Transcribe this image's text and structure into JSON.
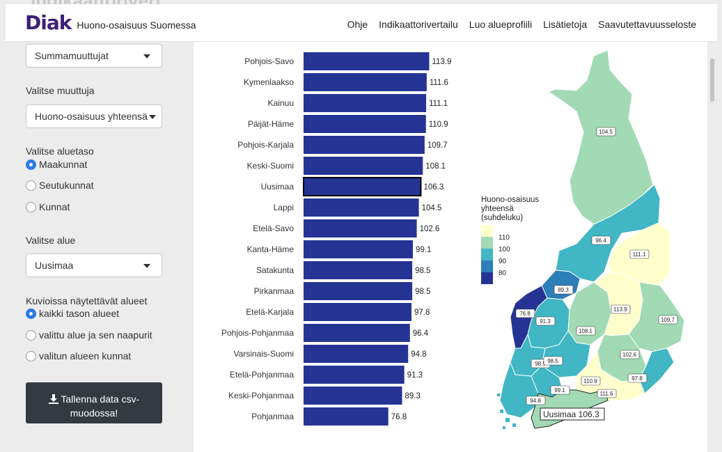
{
  "ghost": {
    "title": "Indikaattorivert",
    "sub": "muuttujaluokka"
  },
  "navbar": {
    "logo": "Diak",
    "brand": "Huono-osaisuus Suomessa",
    "links": [
      "Ohje",
      "Indikaattorivertailu",
      "Luo alueprofiili",
      "Lisätietoja",
      "Saavutettavuusseloste"
    ]
  },
  "sidebar": {
    "category_select": "Summamuuttujat",
    "variable_label": "Valitse muuttuja",
    "variable_select": "Huono-osaisuus yhteensä",
    "level_label": "Valitse aluetaso",
    "levels": [
      "Maakunnat",
      "Seutukunnat",
      "Kunnat"
    ],
    "region_label": "Valitse alue",
    "region_select": "Uusimaa",
    "show_label": "Kuvioissa näytettävät alueet",
    "show_options": [
      "kaikki tason alueet",
      "valittu alue ja sen naapurit",
      "valitun alueen kunnat"
    ],
    "download_line1": "Tallenna data csv-",
    "download_line2": "muodossa!"
  },
  "chart_data": [
    {
      "type": "bar",
      "orientation": "horizontal",
      "categories": [
        "Pohjois-Savo",
        "Kymenlaakso",
        "Kainuu",
        "Päijät-Häme",
        "Pohjois-Karjala",
        "Keski-Suomi",
        "Uusimaa",
        "Lappi",
        "Etelä-Savo",
        "Kanta-Häme",
        "Satakunta",
        "Pirkanmaa",
        "Etelä-Karjala",
        "Pohjois-Pohjanmaa",
        "Varsinais-Suomi",
        "Etelä-Pohjanmaa",
        "Keski-Pohjanmaa",
        "Pohjanmaa"
      ],
      "values": [
        113.9,
        111.6,
        111.1,
        110.9,
        109.7,
        108.1,
        106.3,
        104.5,
        102.6,
        99.1,
        98.5,
        98.5,
        97.8,
        96.4,
        94.8,
        91.3,
        89.3,
        76.8
      ],
      "value_labels": [
        "113.9",
        "111.6",
        "111.1",
        "110.9",
        "109.7",
        "108.1",
        "106.3",
        "104.5",
        "102.6",
        "99.1",
        "98.5",
        "98.5",
        "97.8",
        "96.4",
        "94.8",
        "91.3",
        "89.3",
        "76.8"
      ],
      "highlight": "Uusimaa",
      "bar_color": "#253494",
      "xlim": [
        0,
        118
      ]
    },
    {
      "type": "choropleth",
      "legend_title": [
        "Huono-osaisuus",
        "yhteensä",
        "(suhdeluku)"
      ],
      "legend_ticks": [
        "110",
        "100",
        "90",
        "80"
      ],
      "legend_colors": [
        "#ffffcc",
        "#a1dab4",
        "#41b6c4",
        "#2c7fb8",
        "#253494"
      ],
      "region_labels": [
        "104.5",
        "96.4",
        "111.1",
        "89.3",
        "113.9",
        "109.7",
        "76.8",
        "91.3",
        "108.1",
        "98.5",
        "98.5",
        "102.6",
        "110.9",
        "99.1",
        "111.6",
        "97.8",
        "94.8"
      ],
      "tooltip": "Uusimaa 106.3"
    }
  ]
}
